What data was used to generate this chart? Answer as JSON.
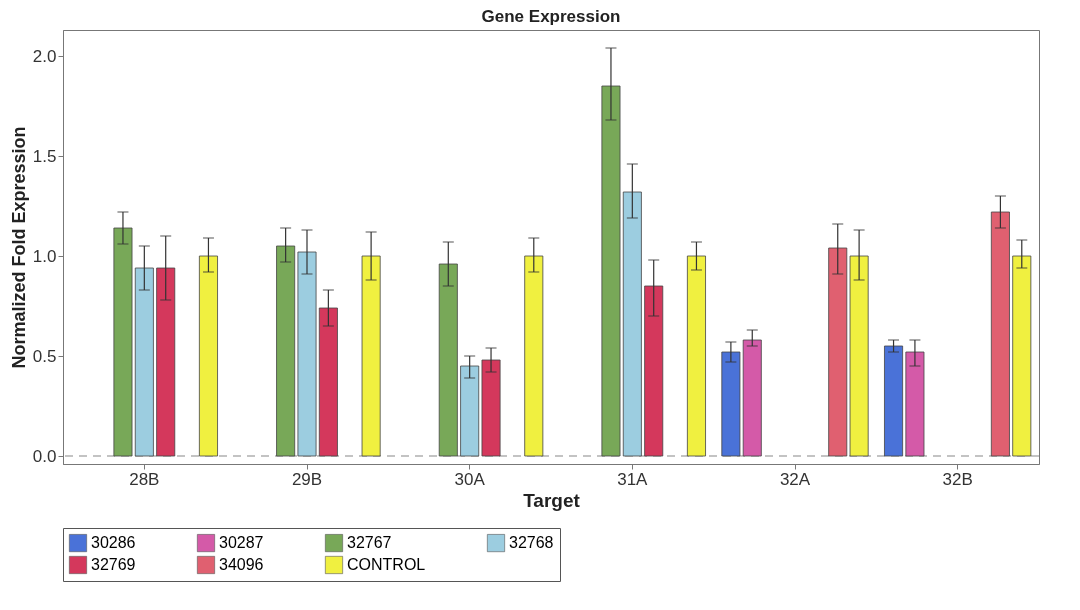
{
  "chart_data": {
    "type": "bar",
    "title": "Gene Expression",
    "xlabel": "Target",
    "ylabel": "Normalized Fold Expression",
    "categories": [
      "28B",
      "29B",
      "30A",
      "31A",
      "32A",
      "32B"
    ],
    "series": [
      {
        "name": "30286",
        "color": "#4a72d8",
        "values": [
          null,
          null,
          null,
          null,
          0.52,
          0.55
        ],
        "errors": [
          null,
          null,
          null,
          null,
          [
            0.47,
            0.57
          ],
          [
            0.52,
            0.58
          ]
        ]
      },
      {
        "name": "30287",
        "color": "#d45aa8",
        "values": [
          null,
          null,
          null,
          null,
          0.58,
          0.52
        ],
        "errors": [
          null,
          null,
          null,
          null,
          [
            0.55,
            0.63
          ],
          [
            0.45,
            0.58
          ]
        ]
      },
      {
        "name": "32767",
        "color": "#78a858",
        "values": [
          1.14,
          1.05,
          0.96,
          1.85,
          null,
          null
        ],
        "errors": [
          [
            1.06,
            1.22
          ],
          [
            0.97,
            1.14
          ],
          [
            0.85,
            1.07
          ],
          [
            1.68,
            2.04
          ],
          null,
          null
        ]
      },
      {
        "name": "32768",
        "color": "#9ccde0",
        "values": [
          0.94,
          1.02,
          0.45,
          1.32,
          null,
          null
        ],
        "errors": [
          [
            0.83,
            1.05
          ],
          [
            0.91,
            1.13
          ],
          [
            0.39,
            0.5
          ],
          [
            1.19,
            1.46
          ],
          null,
          null
        ]
      },
      {
        "name": "32769",
        "color": "#d4385c",
        "values": [
          0.94,
          0.74,
          0.48,
          0.85,
          null,
          null
        ],
        "errors": [
          [
            0.78,
            1.1
          ],
          [
            0.65,
            0.83
          ],
          [
            0.42,
            0.54
          ],
          [
            0.7,
            0.98
          ],
          null,
          null
        ]
      },
      {
        "name": "34096",
        "color": "#e06070",
        "values": [
          null,
          null,
          null,
          null,
          1.04,
          1.22
        ],
        "errors": [
          null,
          null,
          null,
          null,
          [
            0.91,
            1.16
          ],
          [
            1.14,
            1.3
          ]
        ]
      },
      {
        "name": "CONTROL",
        "color": "#f0f040",
        "values": [
          1.0,
          1.0,
          1.0,
          1.0,
          1.0,
          1.0
        ],
        "errors": [
          [
            0.92,
            1.09
          ],
          [
            0.88,
            1.12
          ],
          [
            0.92,
            1.09
          ],
          [
            0.93,
            1.07
          ],
          [
            0.88,
            1.13
          ],
          [
            0.94,
            1.08
          ]
        ]
      }
    ],
    "ylim": [
      -0.04,
      2.13
    ],
    "yticks": [
      {
        "value": 0,
        "label": "0.0"
      },
      0.5,
      {
        "value": 1,
        "label": "1.0"
      },
      1.5,
      {
        "value": 2,
        "label": "2.0"
      }
    ],
    "ref_lines": [
      {
        "axis": "y",
        "value": 0,
        "color": "#888888",
        "line_style": "dashed"
      }
    ],
    "grid": false,
    "legend": "bottom"
  }
}
